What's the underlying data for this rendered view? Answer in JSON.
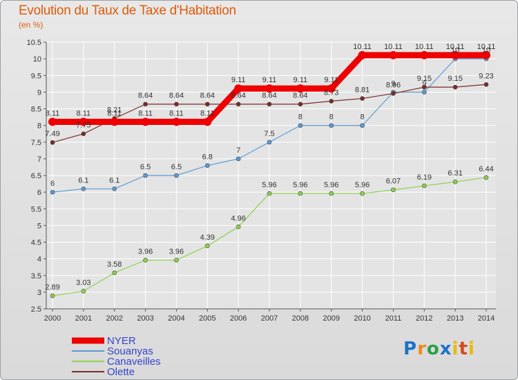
{
  "title": "Evolution du Taux de Taxe d'Habitation",
  "subtitle": "(en %)",
  "logo_text": "Proxiti",
  "colors": {
    "title": "#e05a0a",
    "grid": "#ffffff",
    "axis": "#555555",
    "plot_bg": "#e4e4e4"
  },
  "chart_data": {
    "type": "line",
    "x": [
      2000,
      2001,
      2002,
      2003,
      2004,
      2005,
      2006,
      2007,
      2008,
      2009,
      2010,
      2011,
      2012,
      2013,
      2014
    ],
    "ylim": [
      2.5,
      10.5
    ],
    "yticks": [
      2.5,
      3,
      3.5,
      4,
      4.5,
      5,
      5.5,
      6,
      6.5,
      7,
      7.5,
      8,
      8.5,
      9,
      9.5,
      10,
      10.5
    ],
    "grid": true,
    "legend_position": "bottom-left",
    "series": [
      {
        "name": "NYER",
        "color": "#ee0000",
        "values": [
          8.11,
          8.11,
          8.11,
          8.11,
          8.11,
          8.11,
          9.11,
          9.11,
          9.11,
          9.11,
          10.11,
          10.11,
          10.11,
          10.11,
          10.11
        ],
        "labels": [
          "8.11",
          "8.11",
          "8.11",
          "8.11",
          "8.11",
          "8.11",
          "9.11",
          "9.11",
          "9.11",
          "9.11",
          "10.11",
          "10.11",
          "10.11",
          "10.11",
          "10.11"
        ]
      },
      {
        "name": "Souanyas",
        "color": "#5b9bd5",
        "values": [
          6,
          6.1,
          6.1,
          6.5,
          6.5,
          6.8,
          7,
          7.5,
          8,
          8,
          8,
          9,
          9,
          10,
          10
        ],
        "labels": [
          "6",
          "6.1",
          "6.1",
          "6.5",
          "6.5",
          "6.8",
          "7",
          "7.5",
          "8",
          "8",
          "8",
          "9",
          "9",
          "10",
          "10"
        ]
      },
      {
        "name": "Canaveilles",
        "color": "#8fd14f",
        "values": [
          2.89,
          3.03,
          3.58,
          3.96,
          3.96,
          4.39,
          4.96,
          5.96,
          5.96,
          5.96,
          5.96,
          6.07,
          6.19,
          6.31,
          6.44
        ],
        "labels": [
          "2.89",
          "3.03",
          "3.58",
          "3.96",
          "3.96",
          "4.39",
          "4.96",
          "5.96",
          "5.96",
          "5.96",
          "5.96",
          "6.07",
          "6.19",
          "6.31",
          "6.44"
        ]
      },
      {
        "name": "Olette",
        "color": "#7a2a2a",
        "values": [
          7.49,
          7.75,
          8.21,
          8.64,
          8.64,
          8.64,
          8.64,
          8.64,
          8.64,
          8.73,
          8.81,
          8.96,
          9.15,
          9.15,
          9.23
        ],
        "labels": [
          "7.49",
          "7.75",
          "8.21",
          "8.64",
          "8.64",
          "8.64",
          "8.64",
          "8.64",
          "8.64",
          "8.73",
          "8.81",
          "8.96",
          "9.15",
          "9.15",
          "9.23"
        ]
      }
    ]
  }
}
